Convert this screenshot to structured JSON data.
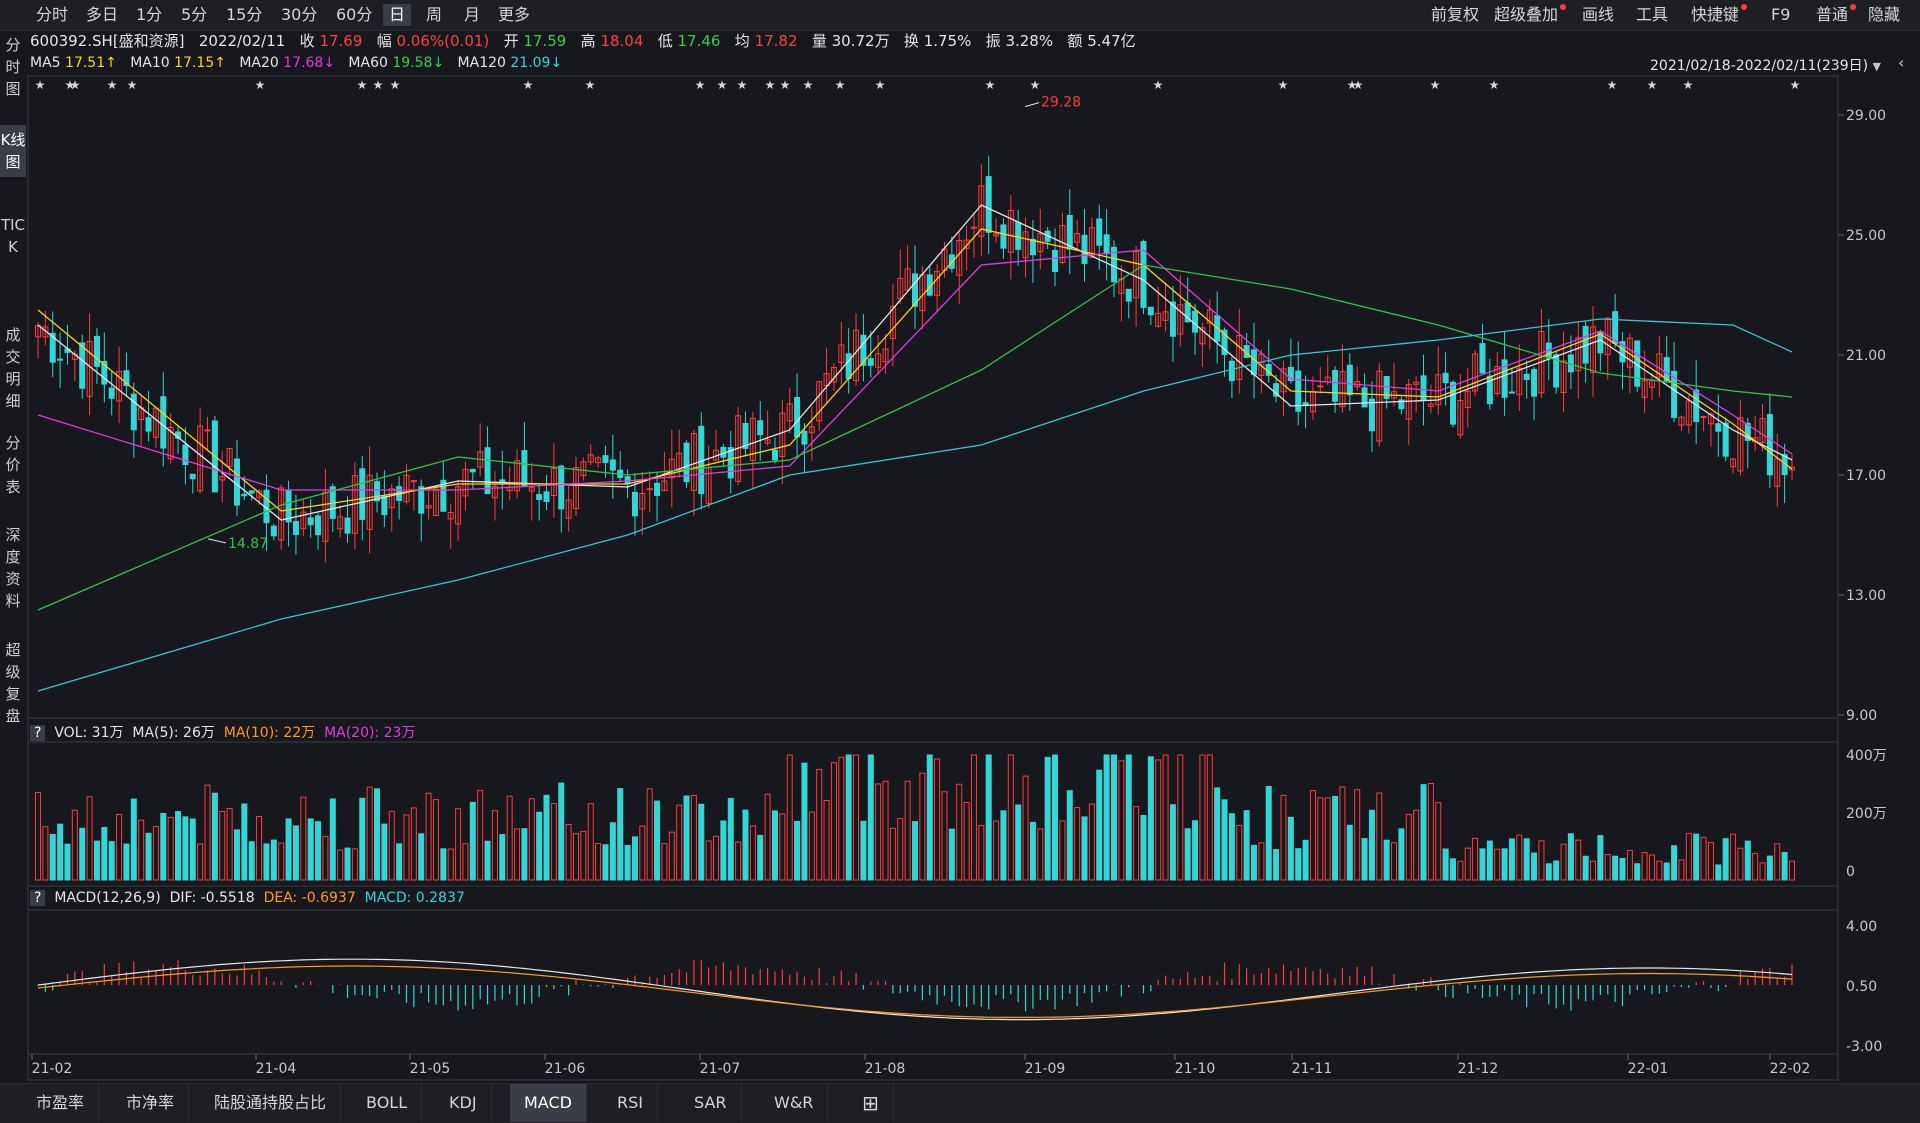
{
  "toolbar": {
    "periods": [
      "分时",
      "多日",
      "1分",
      "5分",
      "15分",
      "30分",
      "60分",
      "日",
      "周",
      "月",
      "更多"
    ],
    "active_period": "日",
    "right_items": [
      "前复权",
      "超级叠加",
      "画线",
      "工具",
      "快捷键",
      "F9",
      "普通",
      "隐藏"
    ]
  },
  "info": {
    "code": "600392.SH[盛和资源]",
    "date": "2022/02/11",
    "close_label": "收",
    "close": "17.69",
    "change_label": "幅",
    "change": "0.06%(0.01)",
    "open_label": "开",
    "open": "17.59",
    "high_label": "高",
    "high": "18.04",
    "low_label": "低",
    "low": "17.46",
    "avg_label": "均",
    "avg": "17.82",
    "vol_label": "量",
    "vol": "30.72万",
    "turnover_label": "换",
    "turnover": "1.75%",
    "amp_label": "振",
    "amp": "3.28%",
    "amount_label": "额",
    "amount": "5.47亿"
  },
  "ma": {
    "ma5_label": "MA5",
    "ma5": "17.51↑",
    "ma10_label": "MA10",
    "ma10": "17.15↑",
    "ma20_label": "MA20",
    "ma20": "17.68↓",
    "ma60_label": "MA60",
    "ma60": "19.58↓",
    "ma120_label": "MA120",
    "ma120": "21.09↓",
    "range": "2021/02/18-2022/02/11(239日)"
  },
  "left_tabs": [
    "分时图",
    "K线图",
    "TICK",
    "成交明细",
    "分价表",
    "深度资料",
    "超级复盘"
  ],
  "active_left_tab": "K线图",
  "price_axis": [
    "29.00",
    "25.00",
    "21.00",
    "17.00",
    "13.00",
    "9.00"
  ],
  "annotations": {
    "max": "29.28",
    "min": "14.87"
  },
  "volume": {
    "help": "?",
    "vol": "VOL: 31万",
    "ma5": "MA(5): 26万",
    "ma10": "MA(10): 22万",
    "ma20": "MA(20): 23万",
    "axis": [
      "400万",
      "200万",
      "0"
    ]
  },
  "macd": {
    "help": "?",
    "title": "MACD(12,26,9)",
    "dif": "DIF: -0.5518",
    "dea": "DEA: -0.6937",
    "macd": "MACD: 0.2837",
    "axis": [
      "4.00",
      "0.50",
      "-3.00"
    ]
  },
  "date_axis": [
    "21-02",
    "21-04",
    "21-05",
    "21-06",
    "21-07",
    "21-08",
    "21-09",
    "21-10",
    "21-11",
    "21-12",
    "22-01",
    "22-02"
  ],
  "bottom_tabs": [
    "市盈率",
    "市净率",
    "陆股通持股占比",
    "BOLL",
    "KDJ",
    "MACD",
    "RSI",
    "SAR",
    "W&R"
  ],
  "active_bottom_tab": "MACD",
  "colors": {
    "up": "#ff3b3b",
    "down": "#32d6d6",
    "ma5": "#e6e6e6",
    "ma10": "#ffd21a",
    "ma20": "#e13bdc",
    "ma60": "#35c04a",
    "ma120": "#32c8d0"
  },
  "chart_data": {
    "type": "line",
    "title": "",
    "x_range": [
      "2021/02/18",
      "2022/02/11"
    ],
    "x": [
      "21-02",
      "21-04",
      "21-05",
      "21-06",
      "21-07",
      "21-08",
      "21-09",
      "21-10",
      "21-11",
      "21-12",
      "22-01",
      "22-02"
    ],
    "ylim": [
      9,
      29.5
    ],
    "series": [
      {
        "name": "MA5",
        "values": [
          22.0,
          15.5,
          16.8,
          16.6,
          18.5,
          26.0,
          23.5,
          19.3,
          19.5,
          21.5,
          18.5,
          17.5
        ]
      },
      {
        "name": "MA10",
        "values": [
          22.5,
          15.8,
          16.7,
          16.7,
          18.0,
          25.2,
          24.0,
          19.8,
          19.6,
          21.7,
          18.7,
          17.2
        ]
      },
      {
        "name": "MA20",
        "values": [
          19.0,
          16.5,
          16.5,
          16.8,
          17.3,
          24.0,
          24.5,
          20.2,
          19.8,
          21.8,
          19.0,
          17.7
        ]
      },
      {
        "name": "MA60",
        "values": [
          12.5,
          16.0,
          17.6,
          17.0,
          17.5,
          20.5,
          24.0,
          23.2,
          22.0,
          20.4,
          19.8,
          19.6
        ]
      },
      {
        "name": "MA120",
        "values": [
          9.8,
          12.2,
          13.5,
          15.0,
          17.0,
          18.0,
          19.8,
          21.0,
          21.5,
          22.2,
          22.0,
          21.1
        ]
      }
    ]
  }
}
